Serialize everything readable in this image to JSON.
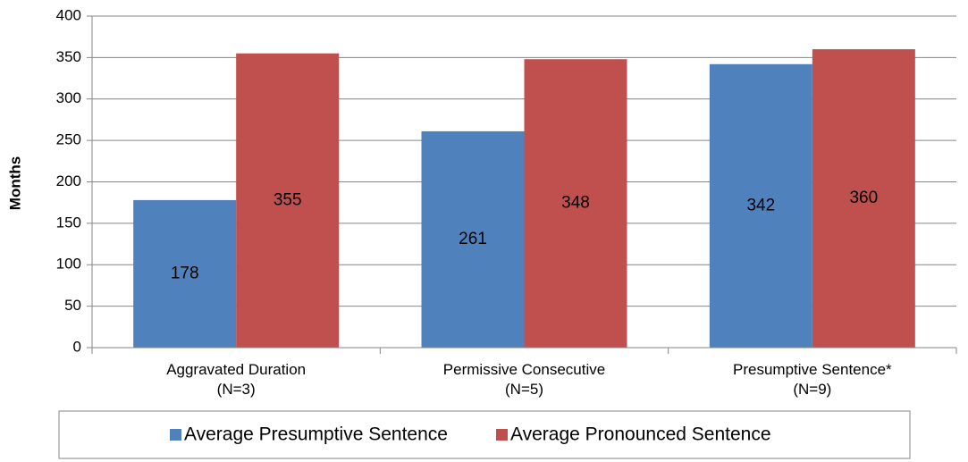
{
  "chart_data": {
    "type": "bar",
    "y_label": "Months",
    "categories": [
      [
        "Aggravated Duration",
        "(N=3)"
      ],
      [
        "Permissive Consecutive",
        "(N=5)"
      ],
      [
        "Presumptive Sentence*",
        "(N=9)"
      ]
    ],
    "series": [
      {
        "name": "Average Presumptive Sentence",
        "color": "#4f81bd",
        "values": [
          178,
          261,
          342
        ]
      },
      {
        "name": "Average Pronounced Sentence",
        "color": "#c0504d",
        "values": [
          355,
          348,
          360
        ]
      }
    ],
    "ylim": [
      0,
      400
    ],
    "yticks": [
      0,
      50,
      100,
      150,
      200,
      250,
      300,
      350,
      400
    ],
    "grid": true,
    "legend": "bottom",
    "data_labels": true
  }
}
